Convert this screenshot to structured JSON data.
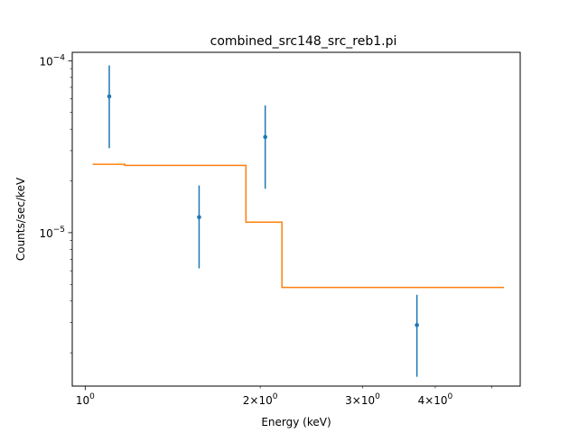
{
  "chart_data": {
    "type": "scatter",
    "title": "combined_src148_src_reb1.pi",
    "xlabel": "Energy (keV)",
    "ylabel": "Counts/sec/keV",
    "x_scale": "log",
    "y_scale": "log",
    "xlim": [
      0.95,
      5.6
    ],
    "ylim": [
      1.28e-06,
      0.000112
    ],
    "x_major_ticks": [
      {
        "value": 1,
        "base": "10",
        "exp": "0"
      }
    ],
    "x_minor_ticks": [
      {
        "value": 2,
        "mant": "2",
        "base": "10",
        "exp": "0"
      },
      {
        "value": 3,
        "mant": "3",
        "base": "10",
        "exp": "0"
      },
      {
        "value": 4,
        "mant": "4",
        "base": "10",
        "exp": "0"
      },
      {
        "value": 5
      },
      {
        "value": 6
      },
      {
        "value": 7
      },
      {
        "value": 8
      },
      {
        "value": 9
      }
    ],
    "y_major_ticks": [
      {
        "value": 1e-05,
        "base": "10",
        "exp": "−5"
      },
      {
        "value": 0.0001,
        "base": "10",
        "exp": "−4"
      }
    ],
    "y_minor_ticks": [
      2e-06,
      3e-06,
      4e-06,
      5e-06,
      6e-06,
      7e-06,
      8e-06,
      9e-06,
      2e-05,
      3e-05,
      4e-05,
      5e-05,
      6e-05,
      7e-05,
      8e-05,
      9e-05
    ],
    "series": [
      {
        "type": "errorbar",
        "color": "#1f77b4",
        "points": [
          {
            "x": 1.1,
            "y": 6.2e-05,
            "ylow": 3.1e-05,
            "yhigh": 9.4e-05
          },
          {
            "x": 1.57,
            "y": 1.23e-05,
            "ylow": 6.2e-06,
            "yhigh": 1.88e-05
          },
          {
            "x": 2.04,
            "y": 3.6e-05,
            "ylow": 1.8e-05,
            "yhigh": 5.5e-05
          },
          {
            "x": 3.72,
            "y": 2.9e-06,
            "ylow": 1.45e-06,
            "yhigh": 4.35e-06
          }
        ]
      },
      {
        "type": "step",
        "color": "#ff7f0e",
        "segments": [
          {
            "x0": 1.03,
            "x1": 1.17,
            "y": 2.5e-05
          },
          {
            "x0": 1.17,
            "x1": 1.89,
            "y": 2.46e-05
          },
          {
            "x0": 1.89,
            "x1": 2.18,
            "y": 1.15e-05
          },
          {
            "x0": 2.18,
            "x1": 5.25,
            "y": 4.8e-06
          }
        ]
      }
    ]
  }
}
